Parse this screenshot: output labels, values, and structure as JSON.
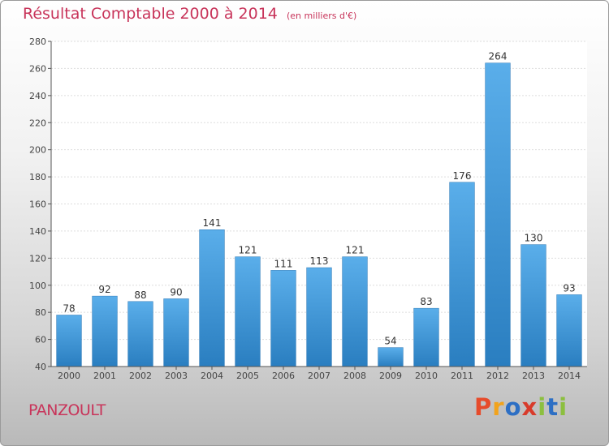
{
  "title": "Résultat Comptable 2000 à 2014",
  "subtitle": "(en milliers d'€)",
  "place": "PANZOULT",
  "logo": {
    "letters": [
      "P",
      "r",
      "o",
      "x",
      "i",
      "t",
      "i"
    ],
    "colors": [
      "#e64b2b",
      "#f2a31c",
      "#2d6fc4",
      "#d83b2b",
      "#8cbf3f",
      "#2d6fc4",
      "#8cbf3f"
    ]
  },
  "colors": {
    "bar_top": "#5aaeea",
    "bar_bottom": "#2a7ec0",
    "title": "#c8345a"
  },
  "chart_data": {
    "type": "bar",
    "categories": [
      "2000",
      "2001",
      "2002",
      "2003",
      "2004",
      "2005",
      "2006",
      "2007",
      "2008",
      "2009",
      "2010",
      "2011",
      "2012",
      "2013",
      "2014"
    ],
    "values": [
      78,
      92,
      88,
      90,
      141,
      121,
      111,
      113,
      121,
      54,
      83,
      176,
      264,
      130,
      93
    ],
    "ylim": [
      40,
      280
    ],
    "yticks": [
      40,
      60,
      80,
      100,
      120,
      140,
      160,
      180,
      200,
      220,
      240,
      260,
      280
    ],
    "grid": true,
    "title": "Résultat Comptable 2000 à 2014",
    "xlabel": "",
    "ylabel": ""
  }
}
